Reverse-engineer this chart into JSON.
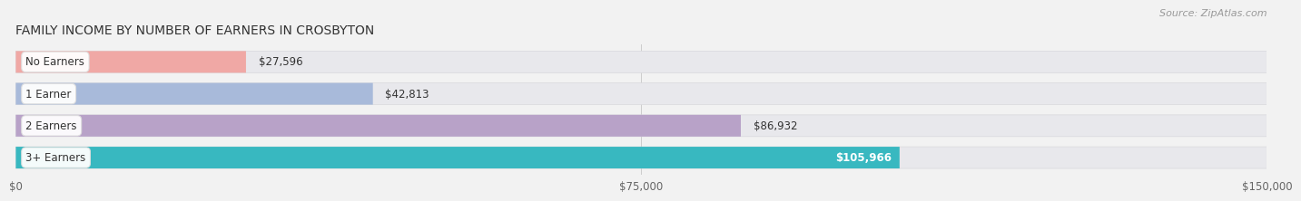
{
  "title": "FAMILY INCOME BY NUMBER OF EARNERS IN CROSBYTON",
  "source": "Source: ZipAtlas.com",
  "categories": [
    "No Earners",
    "1 Earner",
    "2 Earners",
    "3+ Earners"
  ],
  "values": [
    27596,
    42813,
    86932,
    105966
  ],
  "bar_colors": [
    "#f0a8a5",
    "#a8bada",
    "#b8a2c8",
    "#38b8c0"
  ],
  "label_colors": [
    "#444444",
    "#444444",
    "#444444",
    "#ffffff"
  ],
  "value_labels": [
    "$27,596",
    "$42,813",
    "$86,932",
    "$105,966"
  ],
  "xlim": [
    0,
    150000
  ],
  "xticks": [
    0,
    75000,
    150000
  ],
  "xticklabels": [
    "$0",
    "$75,000",
    "$150,000"
  ],
  "background_color": "#f2f2f2",
  "bar_bg_color": "#e8e8ec",
  "title_fontsize": 10,
  "source_fontsize": 8
}
